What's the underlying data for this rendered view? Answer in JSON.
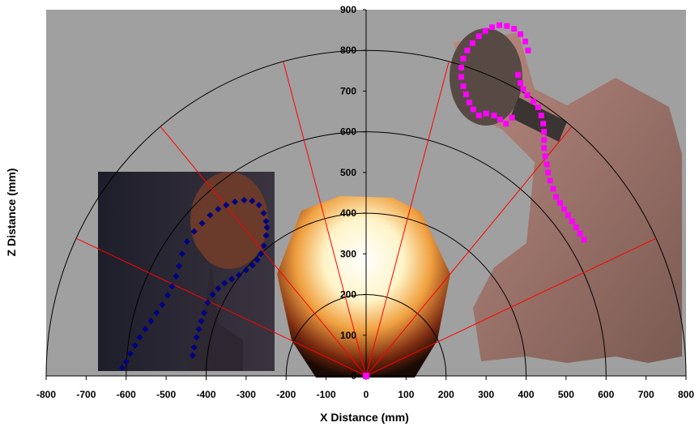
{
  "chart_data": {
    "type": "scatter",
    "xlabel": "X Distance (mm)",
    "ylabel": "Z Distance (mm)",
    "xlim": [
      -800,
      800
    ],
    "ylim": [
      0,
      900
    ],
    "x_ticks": [
      -800,
      -700,
      -600,
      -500,
      -400,
      -300,
      -200,
      -100,
      0,
      100,
      200,
      300,
      400,
      500,
      600,
      700,
      800
    ],
    "y_ticks": [
      0,
      100,
      200,
      300,
      400,
      500,
      600,
      700,
      800,
      900
    ],
    "grid": false,
    "background": "#a0a0a0",
    "arcs_radius_mm": [
      200,
      400,
      600,
      800
    ],
    "ray_angles_deg_from_vertical": [
      -65,
      -40,
      -15,
      15,
      40,
      65
    ],
    "ray_length_mm": 800,
    "series": [
      {
        "color": "#000080",
        "marker": "diamond",
        "points": [
          [
            -610,
            20
          ],
          [
            -600,
            35
          ],
          [
            -590,
            55
          ],
          [
            -578,
            75
          ],
          [
            -566,
            95
          ],
          [
            -552,
            115
          ],
          [
            -538,
            135
          ],
          [
            -524,
            155
          ],
          [
            -510,
            175
          ],
          [
            -496,
            198
          ],
          [
            -485,
            220
          ],
          [
            -475,
            245
          ],
          [
            -468,
            270
          ],
          [
            -460,
            300
          ],
          [
            -448,
            330
          ],
          [
            -430,
            355
          ],
          [
            -410,
            375
          ],
          [
            -390,
            395
          ],
          [
            -370,
            410
          ],
          [
            -350,
            420
          ],
          [
            -328,
            428
          ],
          [
            -305,
            432
          ],
          [
            -285,
            430
          ],
          [
            -268,
            420
          ],
          [
            -256,
            400
          ],
          [
            -250,
            380
          ],
          [
            -248,
            365
          ],
          [
            -250,
            345
          ],
          [
            -256,
            320
          ],
          [
            -263,
            300
          ],
          [
            -272,
            285
          ],
          [
            -284,
            272
          ],
          [
            -300,
            260
          ],
          [
            -318,
            248
          ],
          [
            -336,
            238
          ],
          [
            -354,
            228
          ],
          [
            -370,
            215
          ],
          [
            -384,
            200
          ],
          [
            -396,
            180
          ],
          [
            -405,
            155
          ],
          [
            -412,
            135
          ],
          [
            -418,
            115
          ],
          [
            -424,
            95
          ],
          [
            -430,
            70
          ],
          [
            -434,
            50
          ]
        ]
      },
      {
        "color": "#ff00ff",
        "marker": "square",
        "points": [
          [
            545,
            335
          ],
          [
            535,
            350
          ],
          [
            525,
            365
          ],
          [
            515,
            380
          ],
          [
            505,
            395
          ],
          [
            495,
            410
          ],
          [
            485,
            425
          ],
          [
            475,
            440
          ],
          [
            468,
            460
          ],
          [
            460,
            480
          ],
          [
            455,
            500
          ],
          [
            452,
            520
          ],
          [
            448,
            540
          ],
          [
            445,
            560
          ],
          [
            445,
            580
          ],
          [
            445,
            600
          ],
          [
            443,
            620
          ],
          [
            438,
            640
          ],
          [
            430,
            660
          ],
          [
            418,
            675
          ],
          [
            403,
            690
          ],
          [
            393,
            705
          ],
          [
            386,
            720
          ],
          [
            380,
            740
          ],
          [
            365,
            635
          ],
          [
            350,
            620
          ],
          [
            335,
            630
          ],
          [
            320,
            640
          ],
          [
            300,
            645
          ],
          [
            282,
            640
          ],
          [
            268,
            655
          ],
          [
            258,
            672
          ],
          [
            250,
            692
          ],
          [
            243,
            712
          ],
          [
            238,
            735
          ],
          [
            238,
            758
          ],
          [
            243,
            780
          ],
          [
            253,
            800
          ],
          [
            266,
            818
          ],
          [
            282,
            835
          ],
          [
            298,
            848
          ],
          [
            315,
            857
          ],
          [
            333,
            862
          ],
          [
            352,
            860
          ],
          [
            370,
            853
          ],
          [
            386,
            840
          ],
          [
            398,
            822
          ],
          [
            405,
            800
          ]
        ]
      }
    ]
  }
}
